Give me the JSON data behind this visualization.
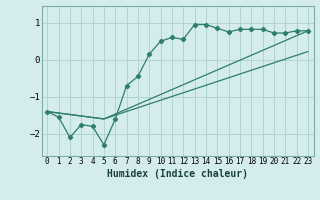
{
  "xlabel": "Humidex (Indice chaleur)",
  "bg_color": "#d4ecec",
  "line_color": "#2e7d70",
  "grid_color": "#afd4d4",
  "xlim": [
    -0.5,
    23.5
  ],
  "ylim": [
    -2.6,
    1.45
  ],
  "xticks": [
    0,
    1,
    2,
    3,
    4,
    5,
    6,
    7,
    8,
    9,
    10,
    11,
    12,
    13,
    14,
    15,
    16,
    17,
    18,
    19,
    20,
    21,
    22,
    23
  ],
  "yticks": [
    -2,
    -1,
    0,
    1
  ],
  "series1_x": [
    0,
    1,
    2,
    3,
    4,
    5,
    6,
    7,
    8,
    9,
    10,
    11,
    12,
    13,
    14,
    15,
    16,
    17,
    18,
    19,
    20,
    21,
    22,
    23
  ],
  "series1_y": [
    -1.4,
    -1.55,
    -2.1,
    -1.75,
    -1.8,
    -2.3,
    -1.6,
    -0.7,
    -0.45,
    0.15,
    0.5,
    0.6,
    0.55,
    0.95,
    0.95,
    0.85,
    0.75,
    0.82,
    0.82,
    0.82,
    0.72,
    0.72,
    0.78,
    0.78
  ],
  "series2_x": [
    0,
    5,
    23
  ],
  "series2_y": [
    -1.4,
    -1.6,
    0.22
  ],
  "series3_x": [
    0,
    5,
    23
  ],
  "series3_y": [
    -1.4,
    -1.6,
    0.78
  ]
}
